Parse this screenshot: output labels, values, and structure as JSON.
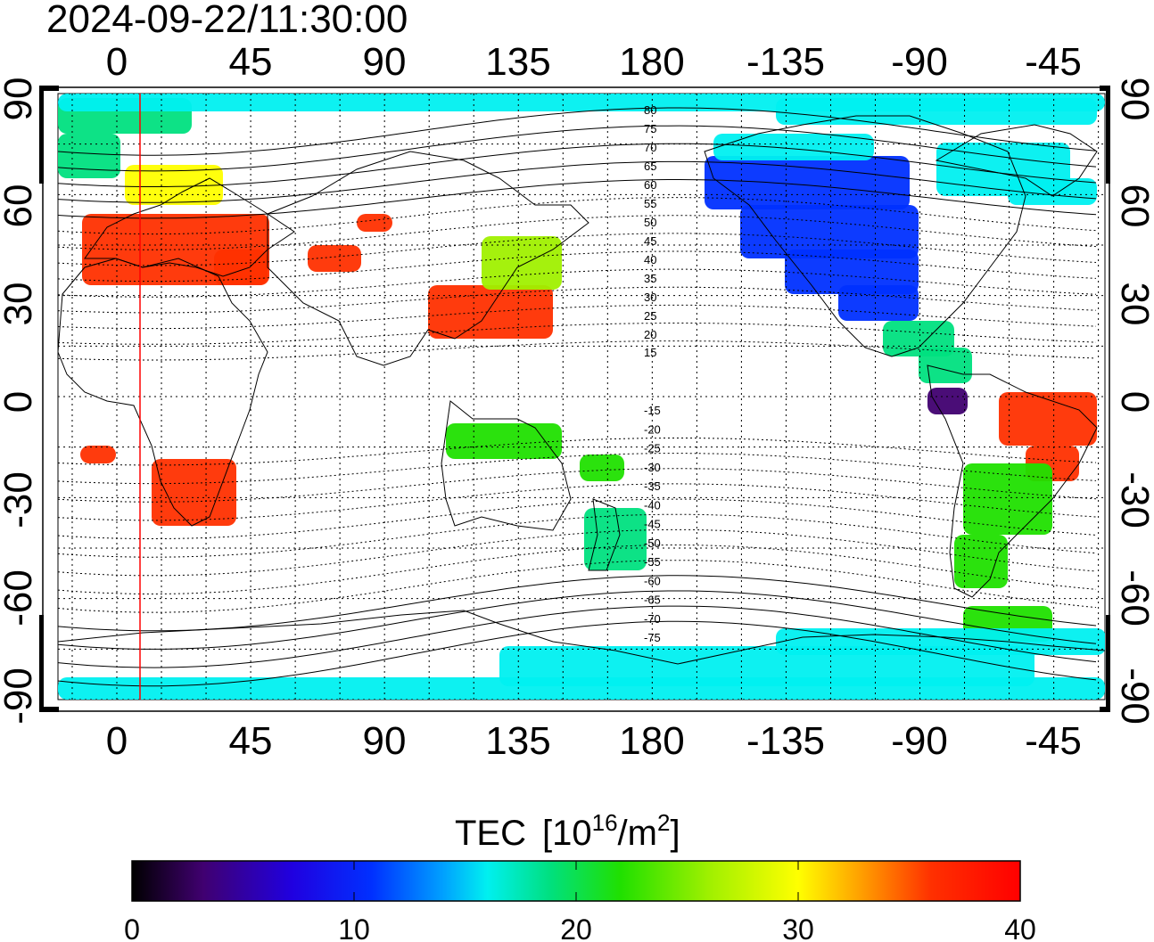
{
  "timestamp": "2024-09-22/11:30:00",
  "map": {
    "projection": "equirectangular",
    "center_longitude": 167.5,
    "lon_ticks_top": [
      "0",
      "45",
      "90",
      "135",
      "180",
      "-135",
      "-90",
      "-45"
    ],
    "lon_ticks_bottom": [
      "0",
      "45",
      "90",
      "135",
      "180",
      "-135",
      "-90",
      "-45"
    ],
    "lat_ticks_left": [
      "90",
      "60",
      "30",
      "0",
      "-30",
      "-60",
      "-90"
    ],
    "lat_ticks_right": [
      "90",
      "60",
      "30",
      "0",
      "-30",
      "-60",
      "-90"
    ],
    "grid": "dotted every 15 degrees",
    "subsolar_marker_color": "#ff0000",
    "magnetic_latitude_labels": [
      "80",
      "75",
      "70",
      "65",
      "60",
      "55",
      "50",
      "45",
      "40",
      "35",
      "30",
      "25",
      "20",
      "15",
      "-15",
      "-20",
      "-25",
      "-30",
      "-35",
      "-40",
      "-45",
      "-50",
      "-55",
      "-60",
      "-65",
      "-70",
      "-75"
    ],
    "tec_regions": [
      {
        "name": "north-america",
        "tec": 10
      },
      {
        "name": "canada-arctic",
        "tec": 15
      },
      {
        "name": "central-america",
        "tec": 20
      },
      {
        "name": "equatorial-south-america",
        "tec": 2
      },
      {
        "name": "brazil",
        "tec": 36
      },
      {
        "name": "southern-south-america",
        "tec": 24
      },
      {
        "name": "europe",
        "tec": 38
      },
      {
        "name": "north-europe",
        "tec": 30
      },
      {
        "name": "scandinavia",
        "tec": 20
      },
      {
        "name": "east-asia",
        "tec": 38
      },
      {
        "name": "japan",
        "tec": 25
      },
      {
        "name": "southern-africa",
        "tec": 38
      },
      {
        "name": "australia",
        "tec": 22
      },
      {
        "name": "new-zealand",
        "tec": 20
      },
      {
        "name": "antarctica",
        "tec": 16
      },
      {
        "name": "arctic",
        "tec": 18
      }
    ]
  },
  "colorbar": {
    "title": "TEC",
    "unit_prefix": "[10",
    "unit_exp": "16",
    "unit_mid": "/m",
    "unit_exp2": "2",
    "unit_suffix": "]",
    "min": 0,
    "max": 40,
    "tick_labels": [
      "0",
      "10",
      "20",
      "30",
      "40"
    ],
    "colors": [
      "#000000",
      "#400070",
      "#2000e0",
      "#0030ff",
      "#00a0ff",
      "#00f0f0",
      "#00e080",
      "#20e000",
      "#a0f000",
      "#ffff00",
      "#ffa000",
      "#ff3000",
      "#ff0000"
    ]
  }
}
